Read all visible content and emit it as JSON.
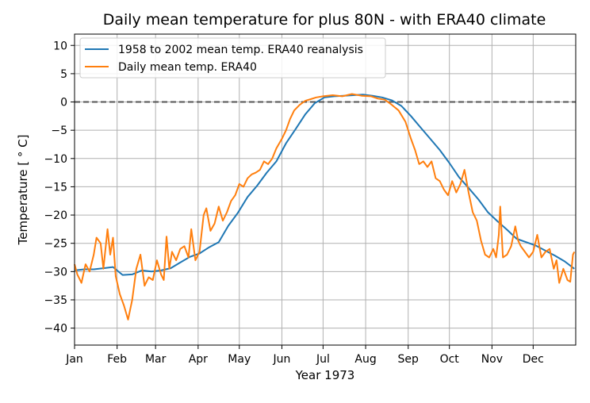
{
  "chart_data": {
    "type": "line",
    "title": "Daily mean temperature for plus 80N - with ERA40 climate",
    "xlabel": "Year 1973",
    "ylabel": "Temperature [$^\\circ$C]",
    "ylabel_display": "Temperature [ ° C]",
    "xlim": [
      "1973-01-01",
      "1973-12-31"
    ],
    "ylim": [
      -43,
      12
    ],
    "x_ticks": [
      {
        "date": "1973-01-01",
        "label": "Jan"
      },
      {
        "date": "1973-02-01",
        "label": "Feb"
      },
      {
        "date": "1973-03-01",
        "label": "Mar"
      },
      {
        "date": "1973-04-01",
        "label": "Apr"
      },
      {
        "date": "1973-05-01",
        "label": "May"
      },
      {
        "date": "1973-06-01",
        "label": "Jun"
      },
      {
        "date": "1973-07-01",
        "label": "Jul"
      },
      {
        "date": "1973-08-01",
        "label": "Aug"
      },
      {
        "date": "1973-09-01",
        "label": "Sep"
      },
      {
        "date": "1973-10-01",
        "label": "Oct"
      },
      {
        "date": "1973-11-01",
        "label": "Nov"
      },
      {
        "date": "1973-12-01",
        "label": "Dec"
      }
    ],
    "y_ticks": [
      10,
      5,
      0,
      -5,
      -10,
      -15,
      -20,
      -25,
      -30,
      -35,
      -40
    ],
    "grid": true,
    "legend_position": "top-left",
    "reference_line": {
      "y": 0,
      "style": "dashed",
      "color": "#555555"
    },
    "series": [
      {
        "name": "1958 to 2002 mean temp. ERA40 reanalysis",
        "color": "#1f77b4",
        "points": [
          [
            "1973-01-01",
            -29.8
          ],
          [
            "1973-01-08",
            -29.6
          ],
          [
            "1973-01-15",
            -29.6
          ],
          [
            "1973-01-22",
            -29.4
          ],
          [
            "1973-01-29",
            -29.2
          ],
          [
            "1973-02-05",
            -30.6
          ],
          [
            "1973-02-12",
            -30.5
          ],
          [
            "1973-02-19",
            -29.8
          ],
          [
            "1973-02-26",
            -30.0
          ],
          [
            "1973-03-05",
            -29.8
          ],
          [
            "1973-03-12",
            -29.4
          ],
          [
            "1973-03-19",
            -28.4
          ],
          [
            "1973-03-26",
            -27.4
          ],
          [
            "1973-04-02",
            -26.8
          ],
          [
            "1973-04-09",
            -25.7
          ],
          [
            "1973-04-16",
            -24.8
          ],
          [
            "1973-04-23",
            -21.9
          ],
          [
            "1973-04-30",
            -19.6
          ],
          [
            "1973-05-07",
            -16.8
          ],
          [
            "1973-05-14",
            -14.8
          ],
          [
            "1973-05-21",
            -12.5
          ],
          [
            "1973-05-28",
            -10.5
          ],
          [
            "1973-06-04",
            -7.3
          ],
          [
            "1973-06-11",
            -4.8
          ],
          [
            "1973-06-18",
            -2.2
          ],
          [
            "1973-06-25",
            -0.2
          ],
          [
            "1973-07-02",
            0.8
          ],
          [
            "1973-07-09",
            1.0
          ],
          [
            "1973-07-16",
            1.1
          ],
          [
            "1973-07-23",
            1.2
          ],
          [
            "1973-07-30",
            1.3
          ],
          [
            "1973-08-06",
            1.1
          ],
          [
            "1973-08-13",
            0.8
          ],
          [
            "1973-08-20",
            0.3
          ],
          [
            "1973-08-27",
            -0.7
          ],
          [
            "1973-09-03",
            -2.5
          ],
          [
            "1973-09-10",
            -4.5
          ],
          [
            "1973-09-17",
            -6.5
          ],
          [
            "1973-09-24",
            -8.5
          ],
          [
            "1973-10-01",
            -10.8
          ],
          [
            "1973-10-08",
            -13.3
          ],
          [
            "1973-10-15",
            -15.2
          ],
          [
            "1973-10-22",
            -17.2
          ],
          [
            "1973-10-29",
            -19.5
          ],
          [
            "1973-11-05",
            -21.1
          ],
          [
            "1973-11-12",
            -22.6
          ],
          [
            "1973-11-19",
            -24.2
          ],
          [
            "1973-11-26",
            -24.8
          ],
          [
            "1973-12-03",
            -25.4
          ],
          [
            "1973-12-10",
            -26.3
          ],
          [
            "1973-12-17",
            -27.2
          ],
          [
            "1973-12-24",
            -28.2
          ],
          [
            "1973-12-31",
            -29.5
          ]
        ]
      },
      {
        "name": "Daily mean temp. ERA40",
        "color": "#ff7f0e",
        "points": [
          [
            "1973-01-01",
            -28.7
          ],
          [
            "1973-01-03",
            -30.5
          ],
          [
            "1973-01-06",
            -32.0
          ],
          [
            "1973-01-09",
            -28.7
          ],
          [
            "1973-01-12",
            -30.0
          ],
          [
            "1973-01-15",
            -27.0
          ],
          [
            "1973-01-17",
            -24.0
          ],
          [
            "1973-01-20",
            -25.0
          ],
          [
            "1973-01-22",
            -29.5
          ],
          [
            "1973-01-25",
            -22.5
          ],
          [
            "1973-01-27",
            -27.0
          ],
          [
            "1973-01-29",
            -24.0
          ],
          [
            "1973-01-31",
            -30.8
          ],
          [
            "1973-02-03",
            -34.0
          ],
          [
            "1973-02-06",
            -36.0
          ],
          [
            "1973-02-09",
            -38.5
          ],
          [
            "1973-02-12",
            -35.0
          ],
          [
            "1973-02-15",
            -29.5
          ],
          [
            "1973-02-18",
            -27.0
          ],
          [
            "1973-02-21",
            -32.5
          ],
          [
            "1973-02-24",
            -31.0
          ],
          [
            "1973-02-27",
            -31.5
          ],
          [
            "1973-03-02",
            -28.0
          ],
          [
            "1973-03-05",
            -30.5
          ],
          [
            "1973-03-07",
            -31.5
          ],
          [
            "1973-03-09",
            -23.8
          ],
          [
            "1973-03-11",
            -29.5
          ],
          [
            "1973-03-13",
            -26.5
          ],
          [
            "1973-03-16",
            -28.0
          ],
          [
            "1973-03-19",
            -26.0
          ],
          [
            "1973-03-22",
            -25.5
          ],
          [
            "1973-03-25",
            -27.5
          ],
          [
            "1973-03-27",
            -22.5
          ],
          [
            "1973-03-30",
            -28.0
          ],
          [
            "1973-04-02",
            -26.5
          ],
          [
            "1973-04-05",
            -20.0
          ],
          [
            "1973-04-07",
            -18.8
          ],
          [
            "1973-04-10",
            -22.8
          ],
          [
            "1973-04-13",
            -21.5
          ],
          [
            "1973-04-16",
            -18.5
          ],
          [
            "1973-04-19",
            -21.0
          ],
          [
            "1973-04-22",
            -19.5
          ],
          [
            "1973-04-25",
            -17.5
          ],
          [
            "1973-04-28",
            -16.5
          ],
          [
            "1973-05-01",
            -14.5
          ],
          [
            "1973-05-04",
            -15.0
          ],
          [
            "1973-05-07",
            -13.5
          ],
          [
            "1973-05-10",
            -12.8
          ],
          [
            "1973-05-13",
            -12.5
          ],
          [
            "1973-05-16",
            -12.0
          ],
          [
            "1973-05-19",
            -10.5
          ],
          [
            "1973-05-22",
            -11.0
          ],
          [
            "1973-05-25",
            -10.0
          ],
          [
            "1973-05-28",
            -8.2
          ],
          [
            "1973-06-01",
            -6.5
          ],
          [
            "1973-06-04",
            -5.0
          ],
          [
            "1973-06-07",
            -3.0
          ],
          [
            "1973-06-10",
            -1.5
          ],
          [
            "1973-06-14",
            -0.5
          ],
          [
            "1973-06-18",
            0.2
          ],
          [
            "1973-06-22",
            0.5
          ],
          [
            "1973-06-26",
            0.8
          ],
          [
            "1973-07-01",
            1.0
          ],
          [
            "1973-07-08",
            1.2
          ],
          [
            "1973-07-15",
            1.0
          ],
          [
            "1973-07-22",
            1.4
          ],
          [
            "1973-07-29",
            1.1
          ],
          [
            "1973-08-05",
            1.0
          ],
          [
            "1973-08-10",
            0.6
          ],
          [
            "1973-08-15",
            0.4
          ],
          [
            "1973-08-20",
            -0.5
          ],
          [
            "1973-08-25",
            -1.5
          ],
          [
            "1973-08-30",
            -3.5
          ],
          [
            "1973-09-03",
            -6.5
          ],
          [
            "1973-09-06",
            -8.5
          ],
          [
            "1973-09-09",
            -11.0
          ],
          [
            "1973-09-12",
            -10.5
          ],
          [
            "1973-09-15",
            -11.5
          ],
          [
            "1973-09-18",
            -10.5
          ],
          [
            "1973-09-21",
            -13.5
          ],
          [
            "1973-09-24",
            -14.0
          ],
          [
            "1973-09-27",
            -15.5
          ],
          [
            "1973-09-30",
            -16.5
          ],
          [
            "1973-10-03",
            -14.0
          ],
          [
            "1973-10-06",
            -16.0
          ],
          [
            "1973-10-09",
            -14.5
          ],
          [
            "1973-10-12",
            -12.0
          ],
          [
            "1973-10-15",
            -16.0
          ],
          [
            "1973-10-18",
            -19.5
          ],
          [
            "1973-10-21",
            -21.0
          ],
          [
            "1973-10-24",
            -24.5
          ],
          [
            "1973-10-27",
            -27.0
          ],
          [
            "1973-10-30",
            -27.5
          ],
          [
            "1973-11-02",
            -26.0
          ],
          [
            "1973-11-04",
            -27.5
          ],
          [
            "1973-11-06",
            -23.5
          ],
          [
            "1973-11-07",
            -18.5
          ],
          [
            "1973-11-09",
            -27.5
          ],
          [
            "1973-11-12",
            -27.0
          ],
          [
            "1973-11-15",
            -25.5
          ],
          [
            "1973-11-18",
            -22.0
          ],
          [
            "1973-11-20",
            -24.5
          ],
          [
            "1973-11-22",
            -25.5
          ],
          [
            "1973-11-25",
            -26.5
          ],
          [
            "1973-11-28",
            -27.5
          ],
          [
            "1973-12-01",
            -26.5
          ],
          [
            "1973-12-04",
            -23.5
          ],
          [
            "1973-12-07",
            -27.5
          ],
          [
            "1973-12-10",
            -26.5
          ],
          [
            "1973-12-13",
            -26.0
          ],
          [
            "1973-12-16",
            -29.5
          ],
          [
            "1973-12-18",
            -28.0
          ],
          [
            "1973-12-20",
            -32.0
          ],
          [
            "1973-12-23",
            -29.5
          ],
          [
            "1973-12-26",
            -31.5
          ],
          [
            "1973-12-28",
            -31.8
          ],
          [
            "1973-12-30",
            -27.0
          ],
          [
            "1973-12-31",
            -26.5
          ]
        ]
      }
    ]
  }
}
